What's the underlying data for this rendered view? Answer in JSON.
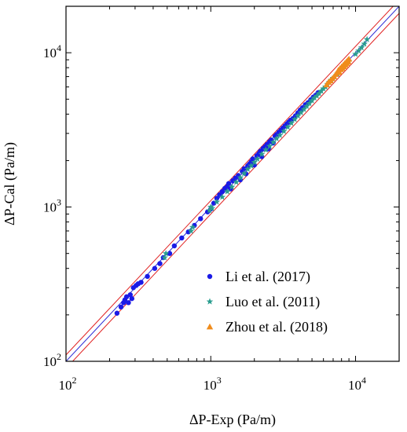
{
  "chart_data": {
    "type": "scatter",
    "xlabel": "ΔP-Exp (Pa/m)",
    "ylabel": "ΔP-Cal (Pa/m)",
    "xscale": "log",
    "yscale": "log",
    "xlim": [
      100,
      20000
    ],
    "ylim": [
      100,
      20000
    ],
    "x_ticks": [
      {
        "value": 100,
        "base": "10",
        "exp": "2"
      },
      {
        "value": 1000,
        "base": "10",
        "exp": "3"
      },
      {
        "value": 10000,
        "base": "10",
        "exp": "4"
      }
    ],
    "y_ticks": [
      {
        "value": 100,
        "base": "10",
        "exp": "2"
      },
      {
        "value": 1000,
        "base": "10",
        "exp": "3"
      },
      {
        "value": 10000,
        "base": "10",
        "exp": "4"
      }
    ],
    "grid": false,
    "legend_position": "bottom-right",
    "reference_lines": [
      {
        "name": "",
        "factor": 1.0,
        "color": "#2b2bd6"
      },
      {
        "name": "",
        "factor": 1.1,
        "color": "#e02020"
      },
      {
        "name": "",
        "factor": 0.9,
        "color": "#e02020"
      }
    ],
    "series": [
      {
        "name": "Li et al. (2017)",
        "marker": "circle",
        "color": "#1a1ae6",
        "points": [
          [
            225,
            205
          ],
          [
            240,
            225
          ],
          [
            250,
            240
          ],
          [
            255,
            250
          ],
          [
            262,
            262
          ],
          [
            270,
            240
          ],
          [
            278,
            270
          ],
          [
            285,
            255
          ],
          [
            292,
            300
          ],
          [
            305,
            310
          ],
          [
            315,
            318
          ],
          [
            330,
            325
          ],
          [
            365,
            355
          ],
          [
            410,
            400
          ],
          [
            445,
            430
          ],
          [
            470,
            470
          ],
          [
            520,
            500
          ],
          [
            560,
            560
          ],
          [
            630,
            630
          ],
          [
            700,
            690
          ],
          [
            770,
            760
          ],
          [
            850,
            840
          ],
          [
            950,
            930
          ],
          [
            1000,
            970
          ],
          [
            1050,
            1060
          ],
          [
            1100,
            1140
          ],
          [
            1150,
            1200
          ],
          [
            1200,
            1260
          ],
          [
            1250,
            1320
          ],
          [
            1300,
            1360
          ],
          [
            1330,
            1420
          ],
          [
            1370,
            1310
          ],
          [
            1420,
            1480
          ],
          [
            1480,
            1540
          ],
          [
            1550,
            1600
          ],
          [
            1600,
            1500
          ],
          [
            1650,
            1700
          ],
          [
            1700,
            1770
          ],
          [
            1750,
            1640
          ],
          [
            1800,
            1850
          ],
          [
            1850,
            1900
          ],
          [
            1900,
            1960
          ],
          [
            1950,
            2050
          ],
          [
            2000,
            1870
          ],
          [
            2080,
            2150
          ],
          [
            2150,
            2220
          ],
          [
            2200,
            2300
          ],
          [
            2250,
            2120
          ],
          [
            2300,
            2400
          ],
          [
            2380,
            2470
          ],
          [
            2450,
            2550
          ],
          [
            2500,
            2380
          ],
          [
            2550,
            2650
          ],
          [
            2620,
            2720
          ],
          [
            2700,
            2600
          ],
          [
            2780,
            2880
          ],
          [
            2850,
            2950
          ],
          [
            2950,
            3050
          ],
          [
            3050,
            3150
          ],
          [
            3150,
            3250
          ],
          [
            3250,
            3350
          ],
          [
            3350,
            3450
          ],
          [
            3450,
            3550
          ],
          [
            3550,
            3650
          ],
          [
            3700,
            3750
          ],
          [
            3850,
            3900
          ],
          [
            4000,
            4080
          ],
          [
            4150,
            4250
          ],
          [
            4300,
            4400
          ],
          [
            4500,
            4600
          ],
          [
            4700,
            4750
          ],
          [
            4900,
            4950
          ],
          [
            5100,
            5150
          ],
          [
            5300,
            5300
          ],
          [
            5500,
            5500
          ]
        ]
      },
      {
        "name": "Luo et al. (2011)",
        "marker": "star",
        "color": "#2a9d8f",
        "points": [
          [
            480,
            470
          ],
          [
            490,
            500
          ],
          [
            730,
            700
          ],
          [
            750,
            740
          ],
          [
            980,
            950
          ],
          [
            1000,
            1000
          ],
          [
            1020,
            980
          ],
          [
            1100,
            1080
          ],
          [
            1200,
            1160
          ],
          [
            1300,
            1260
          ],
          [
            1400,
            1350
          ],
          [
            1500,
            1450
          ],
          [
            1600,
            1550
          ],
          [
            1700,
            1650
          ],
          [
            1800,
            1760
          ],
          [
            1900,
            1850
          ],
          [
            2000,
            1950
          ],
          [
            2100,
            2050
          ],
          [
            2250,
            2200
          ],
          [
            2400,
            2350
          ],
          [
            2550,
            2480
          ],
          [
            2700,
            2630
          ],
          [
            2850,
            2780
          ],
          [
            3000,
            2920
          ],
          [
            3200,
            3100
          ],
          [
            3400,
            3300
          ],
          [
            3600,
            3500
          ],
          [
            3800,
            3700
          ],
          [
            4000,
            3900
          ],
          [
            4200,
            4100
          ],
          [
            4400,
            4300
          ],
          [
            4600,
            4500
          ],
          [
            4800,
            4700
          ],
          [
            5000,
            4900
          ],
          [
            5200,
            5100
          ],
          [
            5400,
            5250
          ],
          [
            5600,
            5450
          ],
          [
            5800,
            5650
          ],
          [
            6000,
            5850
          ],
          [
            6200,
            6000
          ],
          [
            6400,
            6250
          ],
          [
            6600,
            6450
          ],
          [
            6800,
            6650
          ],
          [
            7000,
            6850
          ],
          [
            7500,
            7300
          ],
          [
            8000,
            7800
          ],
          [
            9000,
            8800
          ],
          [
            10000,
            9800
          ],
          [
            10500,
            10300
          ],
          [
            11000,
            10800
          ],
          [
            11500,
            11400
          ],
          [
            12000,
            12200
          ]
        ]
      },
      {
        "name": "Zhou et al. (2018)",
        "marker": "triangle",
        "color": "#f08c1c",
        "points": [
          [
            6300,
            6200
          ],
          [
            6500,
            6450
          ],
          [
            6700,
            6600
          ],
          [
            6900,
            6800
          ],
          [
            7100,
            7000
          ],
          [
            7300,
            7250
          ],
          [
            7500,
            7450
          ],
          [
            7600,
            7700
          ],
          [
            7700,
            7500
          ],
          [
            7800,
            7900
          ],
          [
            7900,
            7800
          ],
          [
            8000,
            8100
          ],
          [
            8100,
            7950
          ],
          [
            8200,
            8300
          ],
          [
            8300,
            8150
          ],
          [
            8400,
            8500
          ],
          [
            8500,
            8350
          ],
          [
            8600,
            8700
          ],
          [
            8700,
            8550
          ],
          [
            8800,
            8900
          ],
          [
            8900,
            8750
          ],
          [
            9000,
            9100
          ]
        ]
      }
    ]
  }
}
